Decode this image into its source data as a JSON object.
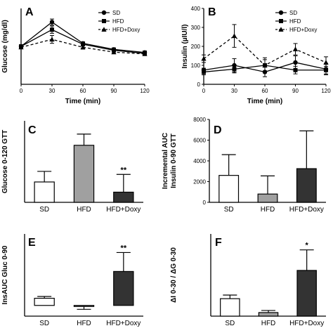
{
  "chart_data": [
    {
      "panel": "A",
      "type": "line",
      "xlabel": "Time (min)",
      "ylabel": "Glucose (mg/dl)",
      "x": [
        0,
        30,
        60,
        90,
        120
      ],
      "xticks": [
        0,
        30,
        60,
        90,
        120
      ],
      "xlim": [
        0,
        120
      ],
      "ylim": [
        0,
        250
      ],
      "series": [
        {
          "name": "SD",
          "marker": "circle",
          "dash": "solid",
          "values": [
            125,
            205,
            135,
            115,
            105
          ],
          "err": [
            5,
            10,
            5,
            5,
            5
          ]
        },
        {
          "name": "HFD",
          "marker": "square",
          "dash": "solid",
          "values": [
            125,
            180,
            132,
            112,
            102
          ],
          "err": [
            5,
            12,
            5,
            5,
            5
          ]
        },
        {
          "name": "HFD+Doxy",
          "marker": "triangle",
          "dash": "dashed",
          "values": [
            122,
            148,
            122,
            106,
            100
          ],
          "err": [
            5,
            13,
            6,
            5,
            4
          ]
        }
      ]
    },
    {
      "panel": "B",
      "type": "line",
      "xlabel": "Time (min)",
      "ylabel": "Insulin (µIU/l)",
      "x": [
        0,
        30,
        60,
        90,
        120
      ],
      "xticks": [
        0,
        30,
        60,
        90,
        120
      ],
      "xlim": [
        0,
        120
      ],
      "ylim": [
        0,
        400
      ],
      "yticks": [
        0,
        100,
        200,
        300,
        400
      ],
      "series": [
        {
          "name": "SD",
          "marker": "circle",
          "dash": "solid",
          "values": [
            75,
            100,
            65,
            115,
            80
          ],
          "err": [
            10,
            35,
            25,
            35,
            30
          ]
        },
        {
          "name": "HFD",
          "marker": "square",
          "dash": "solid",
          "values": [
            65,
            80,
            100,
            75,
            75
          ],
          "err": [
            15,
            20,
            30,
            20,
            20
          ]
        },
        {
          "name": "HFD+Doxy",
          "marker": "triangle",
          "dash": "dashed",
          "values": [
            135,
            255,
            100,
            185,
            115
          ],
          "err": [
            20,
            60,
            40,
            30,
            30
          ]
        }
      ]
    },
    {
      "panel": "C",
      "type": "bar",
      "ylabel": "Glucose 0-120   GTT",
      "categories": [
        "SD",
        "HFD",
        "HFD+Doxy"
      ],
      "values": [
        1000,
        2800,
        500
      ],
      "err": [
        520,
        550,
        870
      ],
      "fills": [
        "#ffffff",
        "#a0a0a0",
        "#333333"
      ],
      "ylim": [
        0,
        4000
      ],
      "annotations": [
        "",
        "",
        "**"
      ]
    },
    {
      "panel": "D",
      "type": "bar",
      "ylabel": "Incremental AUC\nInsulin 0-90   GTT",
      "categories": [
        "SD",
        "HFD",
        "HFD+Doxy"
      ],
      "values": [
        2600,
        800,
        3250
      ],
      "yticks": [
        0,
        2000,
        4000,
        6000,
        8000
      ],
      "err": [
        2000,
        1750,
        3650
      ],
      "fills": [
        "#ffffff",
        "#a0a0a0",
        "#333333"
      ],
      "ylim": [
        0,
        8000
      ],
      "annotations": [
        "",
        "",
        ""
      ]
    },
    {
      "panel": "E",
      "type": "bar",
      "ylabel": "InsAUC Gluc 0-90",
      "categories": [
        "SD",
        "HFD",
        "HFD+Doxy"
      ],
      "values": [
        2,
        -0.3,
        9.5
      ],
      "err": [
        0.5,
        0.8,
        5.3
      ],
      "fills": [
        "#ffffff",
        "#a0a0a0",
        "#333333"
      ],
      "ylim": [
        -3,
        20
      ],
      "annotations": [
        "",
        "",
        "**"
      ]
    },
    {
      "panel": "F",
      "type": "bar",
      "ylabel": "ΔI 0-30 / ΔG 0-30",
      "categories": [
        "SD",
        "HFD",
        "HFD+Doxy"
      ],
      "values": [
        1.7,
        0.35,
        4.45
      ],
      "err": [
        0.35,
        0.2,
        2.0
      ],
      "fills": [
        "#ffffff",
        "#a0a0a0",
        "#333333"
      ],
      "ylim": [
        0,
        8
      ],
      "annotations": [
        "",
        "",
        "*"
      ]
    }
  ]
}
